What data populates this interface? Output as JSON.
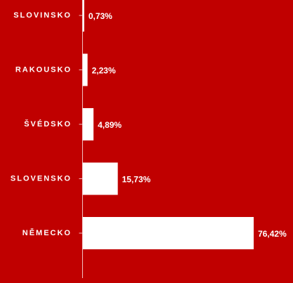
{
  "chart_data": {
    "type": "bar",
    "orientation": "horizontal",
    "categories": [
      "SLOVINSKO",
      "RAKOUSKO",
      "ŠVÉDSKO",
      "SLOVENSKO",
      "NĚMECKO"
    ],
    "values": [
      0.73,
      2.23,
      4.89,
      15.73,
      76.42
    ],
    "value_labels": [
      "0,73%",
      "2,23%",
      "4,89%",
      "15,73%",
      "76,42%"
    ],
    "color": "#ffffff",
    "background": "#c00000",
    "xlim": [
      0,
      80
    ]
  }
}
